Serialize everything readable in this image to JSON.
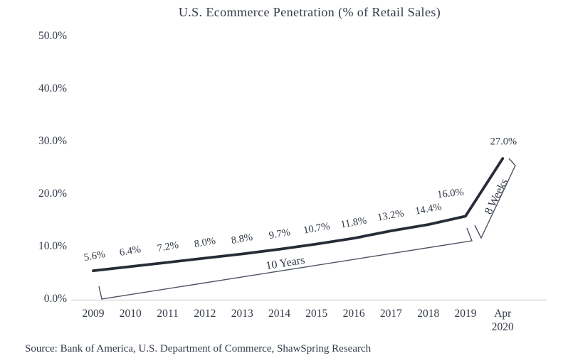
{
  "title": "U.S. Ecommerce Penetration (% of Retail Sales)",
  "source": "Source: Bank of America, U.S. Department of Commerce, ShawSpring Research",
  "colors": {
    "line": "#272c38",
    "text": "#323947",
    "bracket": "#4d5464",
    "axis": "#d9d9d9",
    "background": "#ffffff"
  },
  "chart_data": {
    "type": "line",
    "title": "U.S. Ecommerce Penetration (% of Retail Sales)",
    "xlabel": "",
    "ylabel": "",
    "ylim": [
      0,
      50
    ],
    "grid": false,
    "legend": "none",
    "categories": [
      "2009",
      "2010",
      "2011",
      "2012",
      "2013",
      "2014",
      "2015",
      "2016",
      "2017",
      "2018",
      "2019",
      "Apr 2020"
    ],
    "values": [
      5.6,
      6.4,
      7.2,
      8.0,
      8.8,
      9.7,
      10.7,
      11.8,
      13.2,
      14.4,
      16.0,
      27.0
    ],
    "point_labels": [
      "5.6%",
      "6.4%",
      "7.2%",
      "8.0%",
      "8.8%",
      "9.7%",
      "10.7%",
      "11.8%",
      "13.2%",
      "14.4%",
      "16.0%",
      "27.0%"
    ],
    "y_ticks": [
      {
        "label": "0.0%",
        "value": 0
      },
      {
        "label": "10.0%",
        "value": 10
      },
      {
        "label": "20.0%",
        "value": 20
      },
      {
        "label": "30.0%",
        "value": 30
      },
      {
        "label": "40.0%",
        "value": 40
      },
      {
        "label": "50.0%",
        "value": 50
      }
    ],
    "annotations": [
      {
        "text": "10 Years",
        "span": [
          "2009",
          "2019"
        ]
      },
      {
        "text": "8 Weeks",
        "span": [
          "2019",
          "Apr 2020"
        ]
      }
    ]
  }
}
